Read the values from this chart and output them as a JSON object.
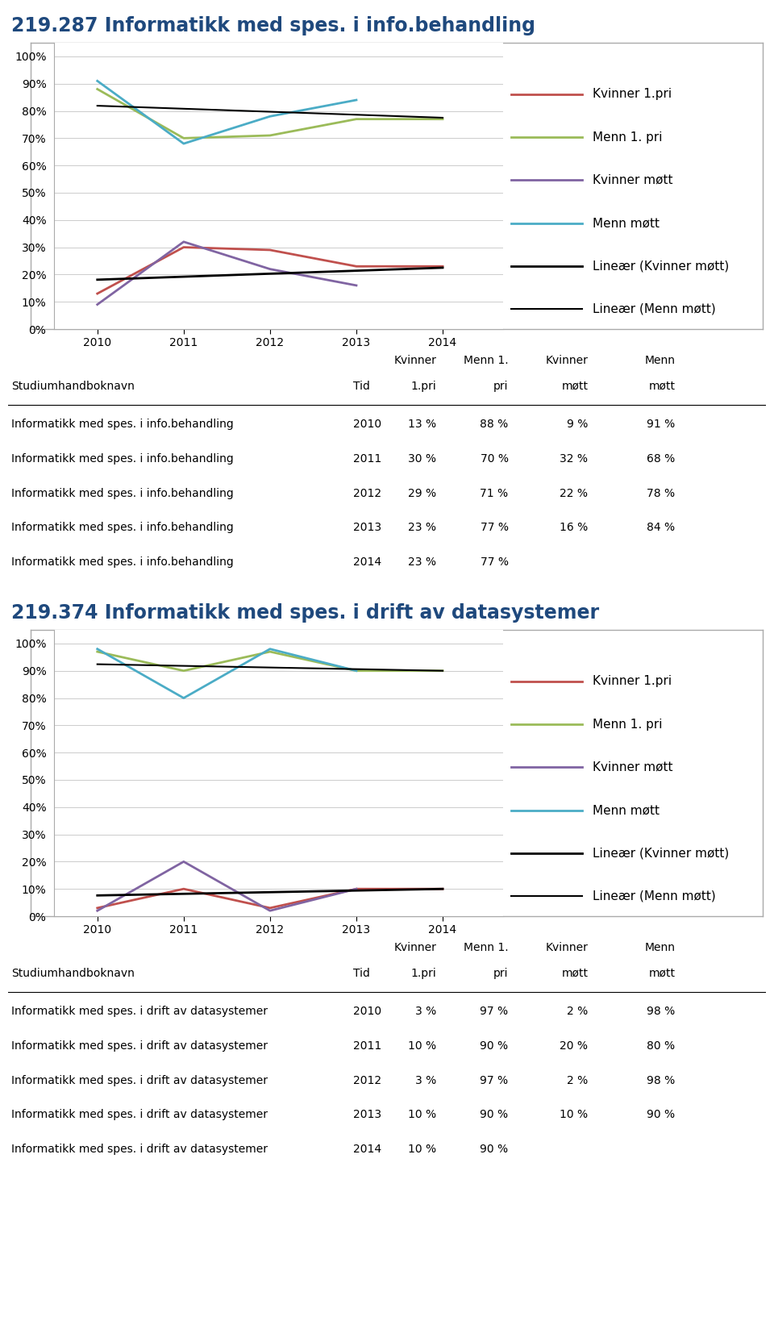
{
  "chart1": {
    "title": "219.287 Informatikk med spes. i info.behandling",
    "years": [
      2010,
      2011,
      2012,
      2013,
      2014
    ],
    "kvinner_1pri": [
      13,
      30,
      29,
      23,
      23
    ],
    "menn_1pri": [
      88,
      70,
      71,
      77,
      77
    ],
    "kvinner_mott": [
      9,
      32,
      22,
      16,
      null
    ],
    "menn_mott": [
      91,
      68,
      78,
      84,
      null
    ],
    "colors": {
      "kvinner_1pri": "#C0504D",
      "menn_1pri": "#9BBB59",
      "kvinner_mott": "#8064A2",
      "menn_mott": "#4BACC6",
      "linear_kvinner": "#000000",
      "linear_menn": "#000000"
    },
    "table_rows": [
      [
        "Informatikk med spes. i info.behandling",
        "2010",
        "13 %",
        "88 %",
        "9 %",
        "91 %"
      ],
      [
        "Informatikk med spes. i info.behandling",
        "2011",
        "30 %",
        "70 %",
        "32 %",
        "68 %"
      ],
      [
        "Informatikk med spes. i info.behandling",
        "2012",
        "29 %",
        "71 %",
        "22 %",
        "78 %"
      ],
      [
        "Informatikk med spes. i info.behandling",
        "2013",
        "23 %",
        "77 %",
        "16 %",
        "84 %"
      ],
      [
        "Informatikk med spes. i info.behandling",
        "2014",
        "23 %",
        "77 %",
        "",
        ""
      ]
    ]
  },
  "chart2": {
    "title": "219.374 Informatikk med spes. i drift av datasystemer",
    "years": [
      2010,
      2011,
      2012,
      2013,
      2014
    ],
    "kvinner_1pri": [
      3,
      10,
      3,
      10,
      10
    ],
    "menn_1pri": [
      97,
      90,
      97,
      90,
      90
    ],
    "kvinner_mott": [
      2,
      20,
      2,
      10,
      null
    ],
    "menn_mott": [
      98,
      80,
      98,
      90,
      null
    ],
    "colors": {
      "kvinner_1pri": "#C0504D",
      "menn_1pri": "#9BBB59",
      "kvinner_mott": "#8064A2",
      "menn_mott": "#4BACC6",
      "linear_kvinner": "#000000",
      "linear_menn": "#000000"
    },
    "table_rows": [
      [
        "Informatikk med spes. i drift av datasystemer",
        "2010",
        "3 %",
        "97 %",
        "2 %",
        "98 %"
      ],
      [
        "Informatikk med spes. i drift av datasystemer",
        "2011",
        "10 %",
        "90 %",
        "20 %",
        "80 %"
      ],
      [
        "Informatikk med spes. i drift av datasystemer",
        "2012",
        "3 %",
        "97 %",
        "2 %",
        "98 %"
      ],
      [
        "Informatikk med spes. i drift av datasystemer",
        "2013",
        "10 %",
        "90 %",
        "10 %",
        "90 %"
      ],
      [
        "Informatikk med spes. i drift av datasystemer",
        "2014",
        "10 %",
        "90 %",
        "",
        ""
      ]
    ]
  },
  "title_color": "#1F497D",
  "title_fontsize": 17,
  "axis_fontsize": 10,
  "legend_fontsize": 11,
  "table_fontsize": 10,
  "background_color": "#FFFFFF",
  "chart_border_color": "#AAAAAA"
}
